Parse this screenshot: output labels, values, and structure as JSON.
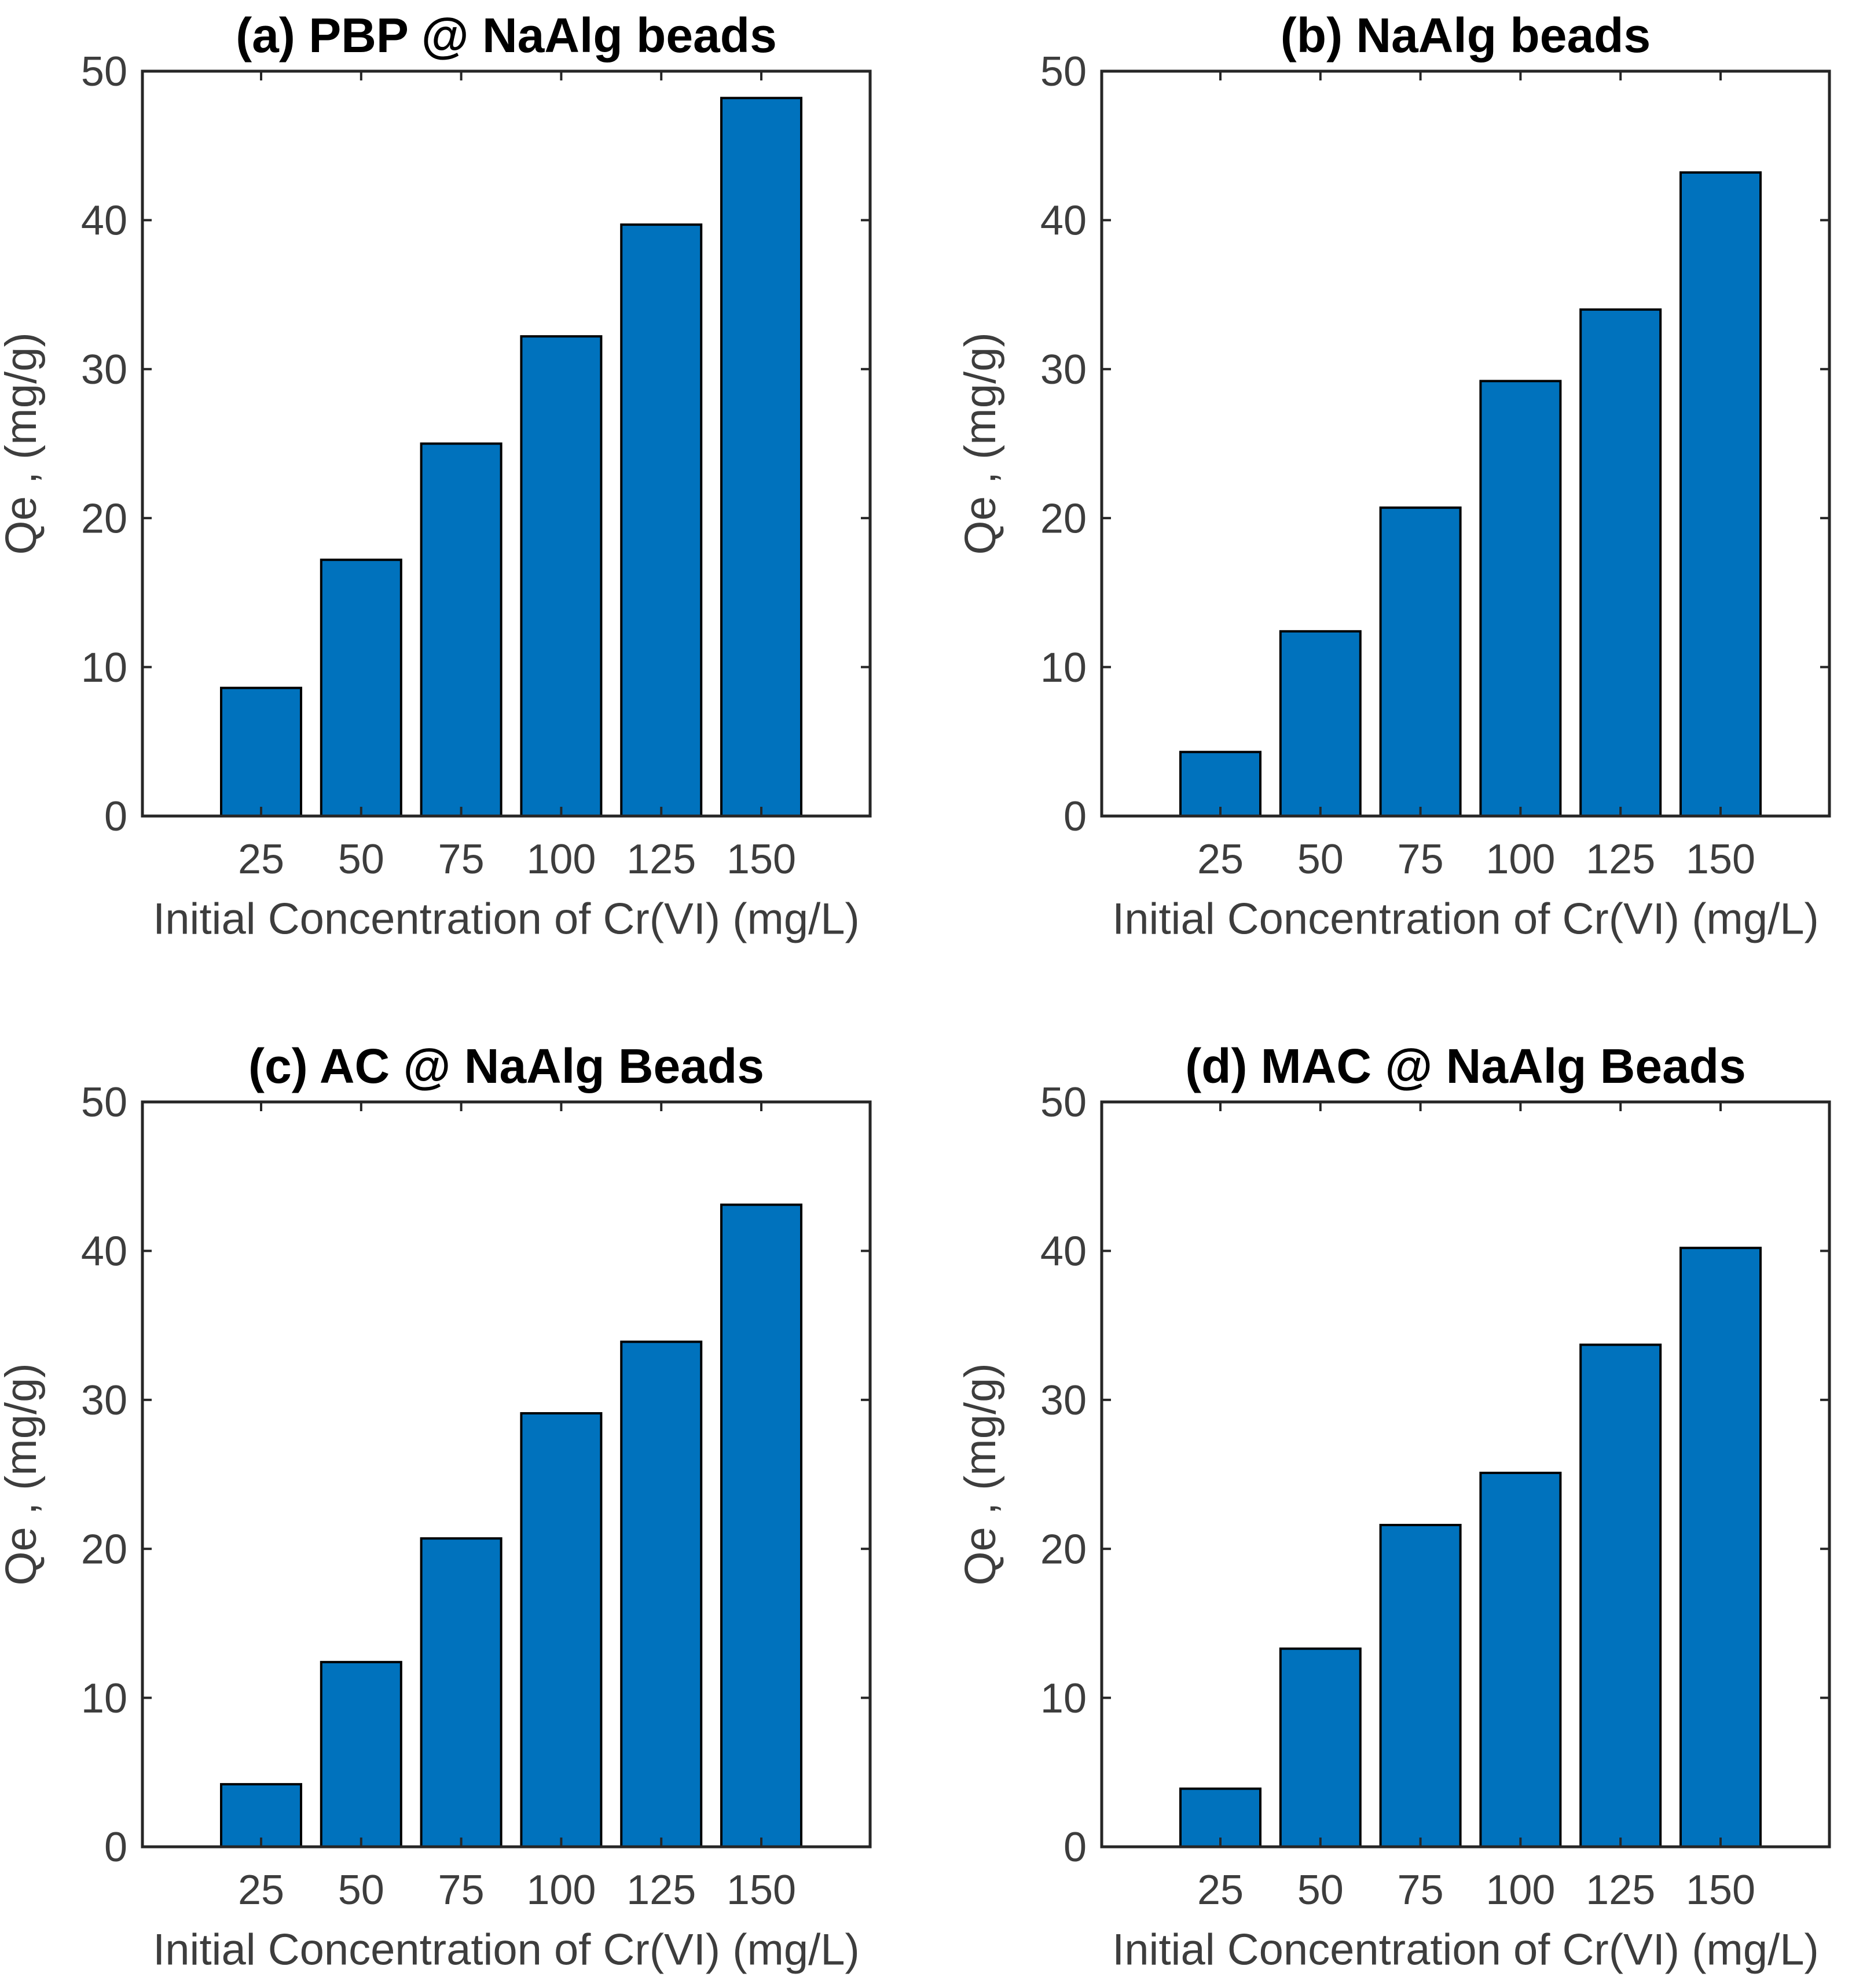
{
  "figure": {
    "background": "#ffffff",
    "colors": {
      "bar_fill": "#0072BD",
      "bar_edge": "#000000",
      "axis_line": "#262626",
      "tick_text": "#3d3d3d",
      "title_text": "#000000"
    },
    "shared": {
      "xlabel": "Initial Concentration of Cr(VI) (mg/L)",
      "ylabel": "Qe , (mg/g)",
      "x_tick_labels": [
        "25",
        "50",
        "75",
        "100",
        "125",
        "150"
      ],
      "y_tick_labels": [
        "0",
        "10",
        "20",
        "30",
        "40",
        "50"
      ]
    }
  },
  "chart_data": [
    {
      "type": "bar",
      "title": "(a) PBP @ NaAlg beads",
      "xlabel": "Initial Concentration of Cr(VI) (mg/L)",
      "ylabel": "Qe , (mg/g)",
      "categories": [
        25,
        50,
        75,
        100,
        125,
        150
      ],
      "values": [
        8.6,
        17.2,
        25.0,
        32.2,
        39.7,
        48.2
      ],
      "ylim": [
        0,
        50
      ],
      "yticks": [
        0,
        10,
        20,
        30,
        40,
        50
      ],
      "grid": false,
      "legend": null
    },
    {
      "type": "bar",
      "title": "(b) NaAlg beads",
      "xlabel": "Initial Concentration of Cr(VI) (mg/L)",
      "ylabel": "Qe , (mg/g)",
      "categories": [
        25,
        50,
        75,
        100,
        125,
        150
      ],
      "values": [
        4.3,
        12.4,
        20.7,
        29.2,
        34.0,
        43.2
      ],
      "ylim": [
        0,
        50
      ],
      "yticks": [
        0,
        10,
        20,
        30,
        40,
        50
      ],
      "grid": false,
      "legend": null
    },
    {
      "type": "bar",
      "title": "(c) AC @ NaAlg Beads",
      "xlabel": "Initial Concentration of Cr(VI) (mg/L)",
      "ylabel": "Qe , (mg/g)",
      "categories": [
        25,
        50,
        75,
        100,
        125,
        150
      ],
      "values": [
        4.2,
        12.4,
        20.7,
        29.1,
        33.9,
        43.1
      ],
      "ylim": [
        0,
        50
      ],
      "yticks": [
        0,
        10,
        20,
        30,
        40,
        50
      ],
      "grid": false,
      "legend": null
    },
    {
      "type": "bar",
      "title": "(d) MAC @ NaAlg Beads",
      "xlabel": "Initial Concentration of Cr(VI) (mg/L)",
      "ylabel": "Qe , (mg/g)",
      "categories": [
        25,
        50,
        75,
        100,
        125,
        150
      ],
      "values": [
        3.9,
        13.3,
        21.6,
        25.1,
        33.7,
        40.2
      ],
      "ylim": [
        0,
        50
      ],
      "yticks": [
        0,
        10,
        20,
        30,
        40,
        50
      ],
      "grid": false,
      "legend": null
    }
  ]
}
